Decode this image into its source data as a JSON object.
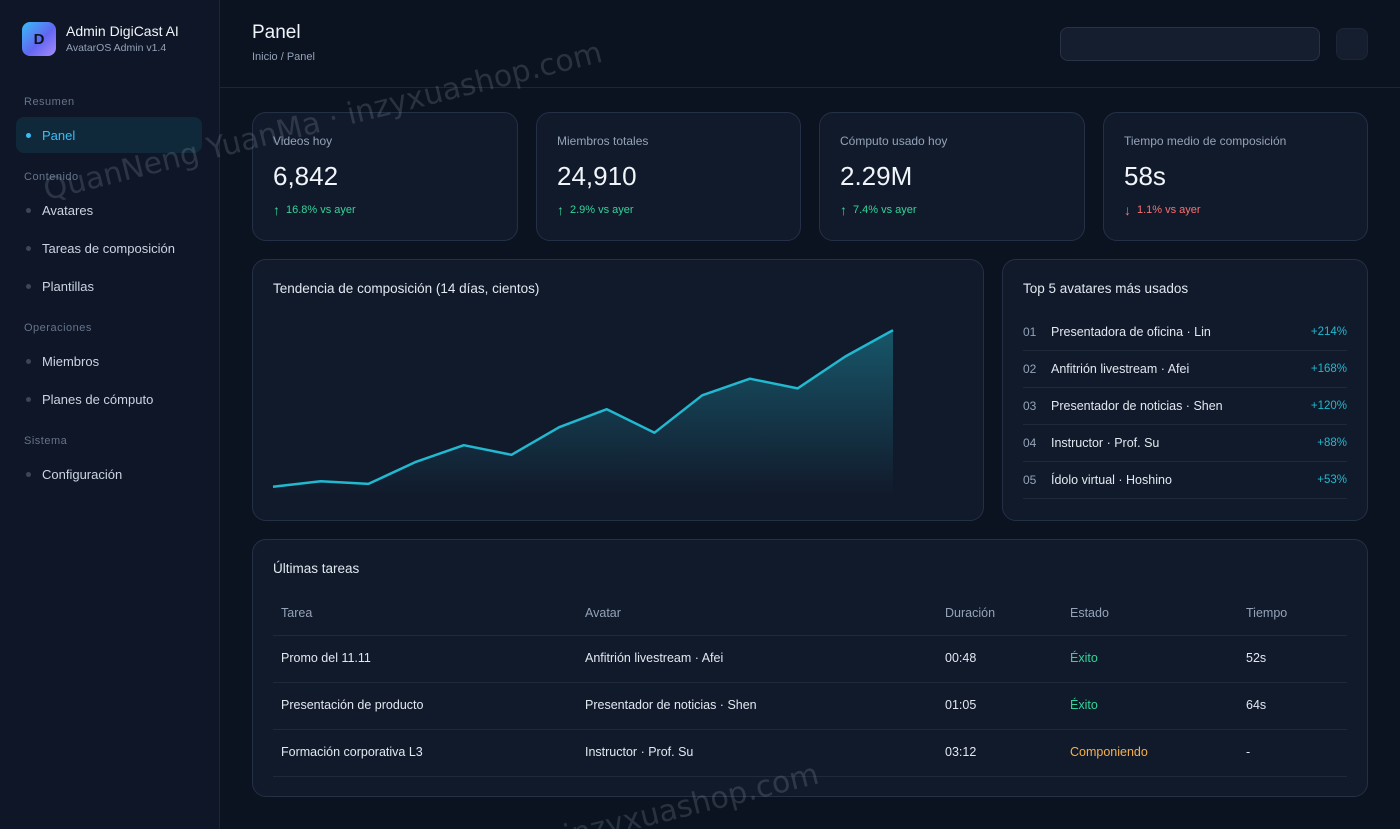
{
  "brand": {
    "logo_letter": "D",
    "title": "Admin DigiCast AI",
    "subtitle": "AvatarOS Admin v1.4"
  },
  "sidebar": {
    "sections": [
      {
        "label": "Resumen"
      },
      {
        "label": "Contenido"
      },
      {
        "label": "Operaciones"
      },
      {
        "label": "Sistema"
      }
    ],
    "items": [
      {
        "label": "Panel",
        "active": true
      },
      {
        "label": "Avatares"
      },
      {
        "label": "Tareas de composición"
      },
      {
        "label": "Plantillas"
      },
      {
        "label": "Miembros"
      },
      {
        "label": "Planes de cómputo"
      },
      {
        "label": "Configuración"
      }
    ]
  },
  "header": {
    "title": "Panel",
    "breadcrumb": "Inicio / Panel",
    "search_value": "",
    "search_placeholder": ""
  },
  "stats": [
    {
      "label": "Videos hoy",
      "value": "6,842",
      "arrow": "↑",
      "change": "16.8% vs ayer",
      "trend": "up"
    },
    {
      "label": "Miembros totales",
      "value": "24,910",
      "arrow": "↑",
      "change": "2.9% vs ayer",
      "trend": "up"
    },
    {
      "label": "Cómputo usado hoy",
      "value": "2.29M",
      "arrow": "↑",
      "change": "7.4% vs ayer",
      "trend": "up"
    },
    {
      "label": "Tiempo medio de composición",
      "value": "58s",
      "arrow": "↓",
      "change": "1.1% vs ayer",
      "trend": "down"
    }
  ],
  "trend_chart": {
    "title": "Tendencia de composición (14 días, cientos)"
  },
  "chart_data": {
    "type": "area",
    "title": "Tendencia de composición (14 días, cientos)",
    "x": [
      1,
      2,
      3,
      4,
      5,
      6,
      7,
      8,
      9,
      10,
      11,
      12,
      13,
      14
    ],
    "values": [
      6,
      10,
      8,
      24,
      36,
      29,
      49,
      62,
      45,
      72,
      84,
      77,
      100,
      119
    ],
    "ylim": [
      0,
      130
    ],
    "grid": false,
    "color": "#22b8cf"
  },
  "top_avatars": {
    "title": "Top 5 avatares más usados",
    "items": [
      {
        "rank": "01",
        "name": "Presentadora de oficina · Lin",
        "growth": "+214%"
      },
      {
        "rank": "02",
        "name": "Anfitrión livestream · Afei",
        "growth": "+168%"
      },
      {
        "rank": "03",
        "name": "Presentador de noticias · Shen",
        "growth": "+120%"
      },
      {
        "rank": "04",
        "name": "Instructor · Prof. Su",
        "growth": "+88%"
      },
      {
        "rank": "05",
        "name": "Ídolo virtual · Hoshino",
        "growth": "+53%"
      }
    ]
  },
  "tasks": {
    "title": "Últimas tareas",
    "columns": [
      "Tarea",
      "Avatar",
      "Duración",
      "Estado",
      "Tiempo"
    ],
    "rows": [
      {
        "task": "Promo del 11.11",
        "avatar": "Anfitrión livestream · Afei",
        "duration": "00:48",
        "status": "Éxito",
        "status_type": "ok",
        "time": "52s"
      },
      {
        "task": "Presentación de producto",
        "avatar": "Presentador de noticias · Shen",
        "duration": "01:05",
        "status": "Éxito",
        "status_type": "ok",
        "time": "64s"
      },
      {
        "task": "Formación corporativa L3",
        "avatar": "Instructor · Prof. Su",
        "duration": "03:12",
        "status": "Componiendo",
        "status_type": "running",
        "time": "-"
      }
    ]
  },
  "watermark": {
    "text": "QuanNeng YuanMa · inzyxuashop.com",
    "text_bottom": "inzyxuashop.com"
  },
  "colors": {
    "accent": "#38bdf8",
    "chart_line": "#22b8cf",
    "up": "#34d399",
    "down": "#f87171",
    "running": "#f5b04c"
  }
}
